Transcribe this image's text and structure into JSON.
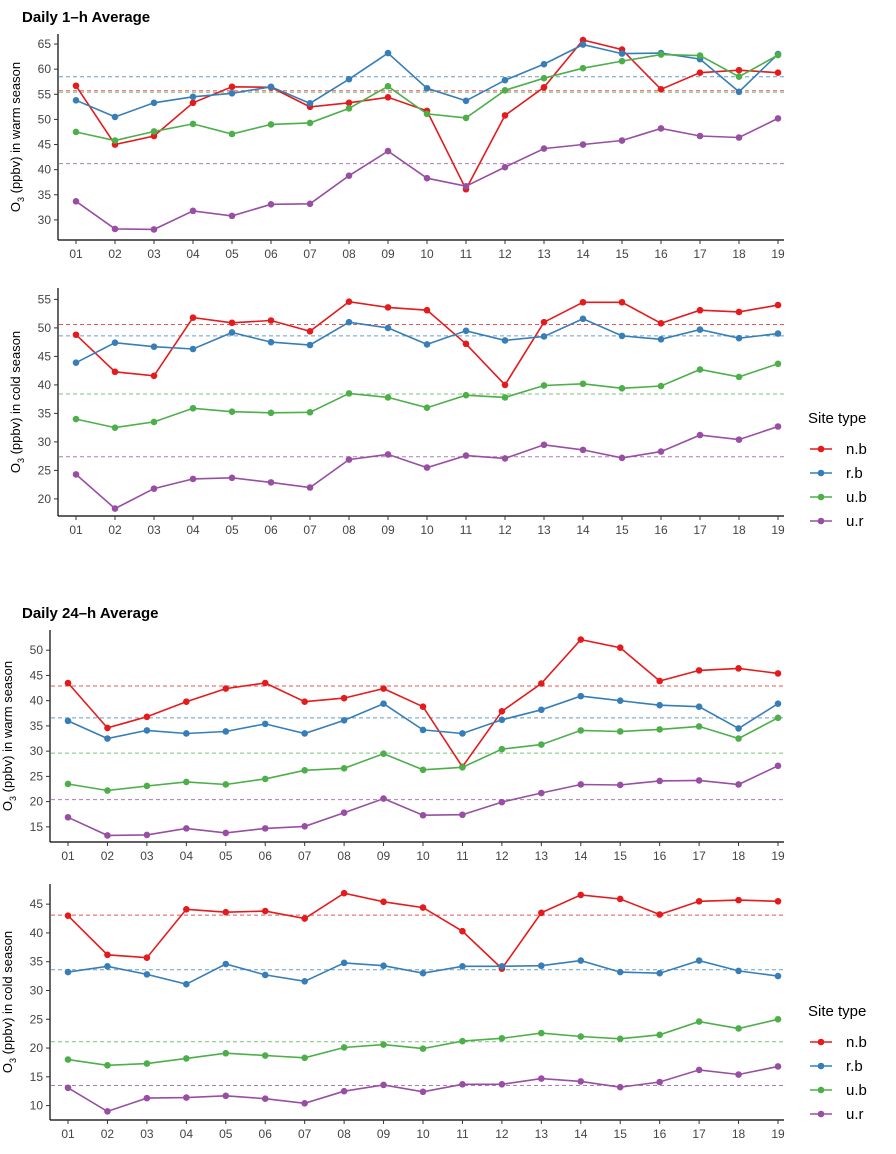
{
  "section_titles": [
    "Daily 1–h Average",
    "Daily 24–h Average"
  ],
  "colors": {
    "n.b": "#e41a1c",
    "r.b": "#377eb8",
    "u.b": "#4daf4a",
    "u.r": "#984ea3"
  },
  "legend": [
    {
      "title": "Site type",
      "entries": [
        "n.b",
        "r.b",
        "u.b",
        "u.r"
      ]
    },
    {
      "title": "Site type",
      "entries": [
        "n.b",
        "r.b",
        "u.b",
        "u.r"
      ]
    }
  ],
  "chart_data": [
    {
      "type": "line",
      "title": "Daily 1–h Average",
      "xlabel": "",
      "ylabel": "O3 (ppbv) in warm season",
      "ylabel_parts": [
        "O",
        "3",
        " (ppbv) in warm season"
      ],
      "categories": [
        "01",
        "02",
        "03",
        "04",
        "05",
        "06",
        "07",
        "08",
        "09",
        "10",
        "11",
        "12",
        "13",
        "14",
        "15",
        "16",
        "17",
        "18",
        "19"
      ],
      "ylim": [
        26,
        67
      ],
      "yticks": [
        30,
        35,
        40,
        45,
        50,
        55,
        60,
        65
      ],
      "series": [
        {
          "name": "n.b",
          "values": [
            56.7,
            45.0,
            46.7,
            53.3,
            56.5,
            56.4,
            52.5,
            53.3,
            54.4,
            51.7,
            36.1,
            50.8,
            56.4,
            65.8,
            63.9,
            56.0,
            59.3,
            59.8,
            59.3
          ],
          "reference": 55.7
        },
        {
          "name": "r.b",
          "values": [
            53.8,
            50.5,
            53.3,
            54.5,
            55.2,
            56.5,
            53.2,
            58.0,
            63.2,
            56.2,
            53.7,
            57.8,
            61.0,
            64.9,
            63.1,
            63.2,
            62.0,
            55.5,
            63.0
          ],
          "reference": 58.5
        },
        {
          "name": "u.b",
          "values": [
            47.5,
            45.8,
            47.6,
            49.1,
            47.1,
            49.0,
            49.3,
            52.2,
            56.6,
            51.1,
            50.3,
            55.8,
            58.2,
            60.2,
            61.6,
            62.9,
            62.7,
            58.5,
            62.8
          ],
          "reference": 55.4
        },
        {
          "name": "u.r",
          "values": [
            33.7,
            28.2,
            28.1,
            31.8,
            30.8,
            33.1,
            33.2,
            38.8,
            43.7,
            38.3,
            36.7,
            40.5,
            44.2,
            45.0,
            45.8,
            48.2,
            46.7,
            46.4,
            50.2
          ],
          "reference": 41.2
        }
      ]
    },
    {
      "type": "line",
      "title": "",
      "xlabel": "",
      "ylabel": "O3 (ppbv) in cold season",
      "ylabel_parts": [
        "O",
        "3",
        " (ppbv) in cold season"
      ],
      "categories": [
        "01",
        "02",
        "03",
        "04",
        "05",
        "06",
        "07",
        "08",
        "09",
        "10",
        "11",
        "12",
        "13",
        "14",
        "15",
        "16",
        "17",
        "18",
        "19"
      ],
      "ylim": [
        17,
        57
      ],
      "yticks": [
        20,
        25,
        30,
        35,
        40,
        45,
        50,
        55
      ],
      "series": [
        {
          "name": "n.b",
          "values": [
            48.8,
            42.3,
            41.6,
            51.8,
            50.9,
            51.3,
            49.4,
            54.6,
            53.6,
            53.1,
            47.2,
            40.0,
            51.0,
            54.5,
            54.5,
            50.8,
            53.1,
            52.8,
            54.0
          ],
          "reference": 50.6
        },
        {
          "name": "r.b",
          "values": [
            43.9,
            47.4,
            46.7,
            46.3,
            49.2,
            47.5,
            47.0,
            51.0,
            50.0,
            47.1,
            49.5,
            47.8,
            48.5,
            51.6,
            48.6,
            48.0,
            49.7,
            48.2,
            49.0
          ],
          "reference": 48.6
        },
        {
          "name": "u.b",
          "values": [
            34.0,
            32.5,
            33.5,
            35.9,
            35.3,
            35.1,
            35.2,
            38.5,
            37.8,
            36.0,
            38.2,
            37.8,
            39.9,
            40.2,
            39.4,
            39.8,
            42.7,
            41.4,
            43.7
          ],
          "reference": 38.4
        },
        {
          "name": "u.r",
          "values": [
            24.3,
            18.3,
            21.8,
            23.5,
            23.7,
            22.9,
            22.0,
            26.9,
            27.8,
            25.5,
            27.6,
            27.1,
            29.5,
            28.6,
            27.2,
            28.3,
            31.2,
            30.4,
            32.7
          ],
          "reference": 27.4
        }
      ]
    },
    {
      "type": "line",
      "title": "Daily 24–h Average",
      "xlabel": "",
      "ylabel": "O3 (ppbv) in warm season",
      "ylabel_parts": [
        "O",
        "3",
        " (ppbv) in warm season"
      ],
      "categories": [
        "01",
        "02",
        "03",
        "04",
        "05",
        "06",
        "07",
        "08",
        "09",
        "10",
        "11",
        "12",
        "13",
        "14",
        "15",
        "16",
        "17",
        "18",
        "19"
      ],
      "ylim": [
        12,
        54
      ],
      "yticks": [
        15,
        20,
        25,
        30,
        35,
        40,
        45,
        50
      ],
      "series": [
        {
          "name": "n.b",
          "values": [
            43.5,
            34.6,
            36.8,
            39.8,
            42.4,
            43.5,
            39.8,
            40.5,
            42.4,
            38.8,
            26.9,
            37.9,
            43.4,
            52.1,
            50.5,
            43.9,
            46.0,
            46.4,
            45.4
          ],
          "reference": 42.9
        },
        {
          "name": "r.b",
          "values": [
            36.0,
            32.5,
            34.1,
            33.5,
            33.9,
            35.4,
            33.5,
            36.1,
            39.4,
            34.2,
            33.5,
            36.2,
            38.2,
            40.9,
            40.0,
            39.1,
            38.8,
            34.5,
            39.4
          ],
          "reference": 36.6
        },
        {
          "name": "u.b",
          "values": [
            23.5,
            22.2,
            23.1,
            23.9,
            23.4,
            24.5,
            26.2,
            26.6,
            29.5,
            26.3,
            26.8,
            30.4,
            31.3,
            34.1,
            33.9,
            34.3,
            34.9,
            32.5,
            36.6
          ],
          "reference": 29.6
        },
        {
          "name": "u.r",
          "values": [
            16.9,
            13.3,
            13.4,
            14.7,
            13.8,
            14.7,
            15.1,
            17.8,
            20.6,
            17.3,
            17.4,
            19.9,
            21.7,
            23.4,
            23.3,
            24.1,
            24.2,
            23.4,
            27.1
          ],
          "reference": 20.4
        }
      ]
    },
    {
      "type": "line",
      "title": "",
      "xlabel": "",
      "ylabel": "O3 (ppbv) in cold season",
      "ylabel_parts": [
        "O",
        "3",
        " (ppbv) in cold season"
      ],
      "categories": [
        "01",
        "02",
        "03",
        "04",
        "05",
        "06",
        "07",
        "08",
        "09",
        "10",
        "11",
        "12",
        "13",
        "14",
        "15",
        "16",
        "17",
        "18",
        "19"
      ],
      "ylim": [
        7.5,
        48.5
      ],
      "yticks": [
        10,
        15,
        20,
        25,
        30,
        35,
        40,
        45
      ],
      "series": [
        {
          "name": "n.b",
          "values": [
            43.0,
            36.2,
            35.7,
            44.1,
            43.6,
            43.8,
            42.5,
            46.9,
            45.4,
            44.4,
            40.3,
            33.8,
            43.5,
            46.6,
            45.9,
            43.2,
            45.5,
            45.7,
            45.5
          ],
          "reference": 43.1
        },
        {
          "name": "r.b",
          "values": [
            33.2,
            34.2,
            32.8,
            31.1,
            34.6,
            32.7,
            31.6,
            34.8,
            34.3,
            33.0,
            34.2,
            34.2,
            34.3,
            35.2,
            33.2,
            33.0,
            35.2,
            33.4,
            32.5
          ],
          "reference": 33.6
        },
        {
          "name": "u.b",
          "values": [
            18.0,
            17.0,
            17.3,
            18.2,
            19.1,
            18.7,
            18.3,
            20.1,
            20.6,
            19.9,
            21.2,
            21.7,
            22.6,
            22.0,
            21.6,
            22.3,
            24.6,
            23.4,
            25.0
          ],
          "reference": 21.1
        },
        {
          "name": "u.r",
          "values": [
            13.1,
            9.0,
            11.3,
            11.4,
            11.7,
            11.2,
            10.4,
            12.5,
            13.6,
            12.4,
            13.7,
            13.7,
            14.7,
            14.2,
            13.2,
            14.1,
            16.2,
            15.4,
            16.8
          ],
          "reference": 13.5
        }
      ]
    }
  ]
}
